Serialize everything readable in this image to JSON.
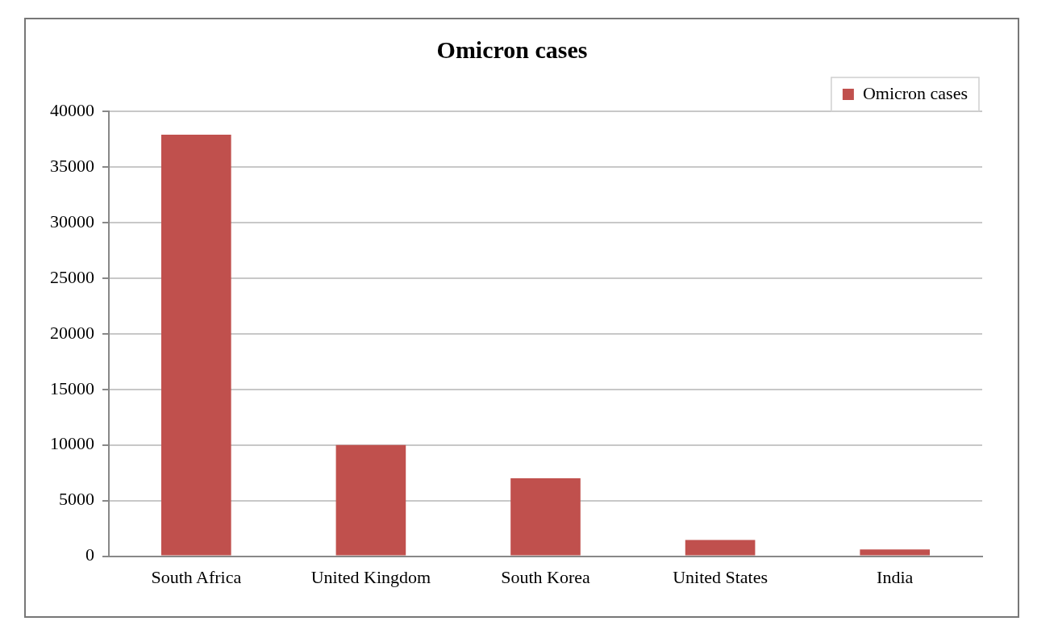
{
  "chart_data": {
    "type": "bar",
    "title": "Omicron cases",
    "categories": [
      "South Africa",
      "United Kingdom",
      "South Korea",
      "United States",
      "India"
    ],
    "series": [
      {
        "name": "Omicron cases",
        "color": "#c0504d",
        "values": [
          37900,
          10000,
          7000,
          1450,
          600
        ]
      }
    ],
    "ylim": [
      0,
      40000
    ],
    "yticks": [
      0,
      5000,
      10000,
      15000,
      20000,
      25000,
      30000,
      35000,
      40000
    ],
    "grid": "y",
    "legend": "top right"
  }
}
